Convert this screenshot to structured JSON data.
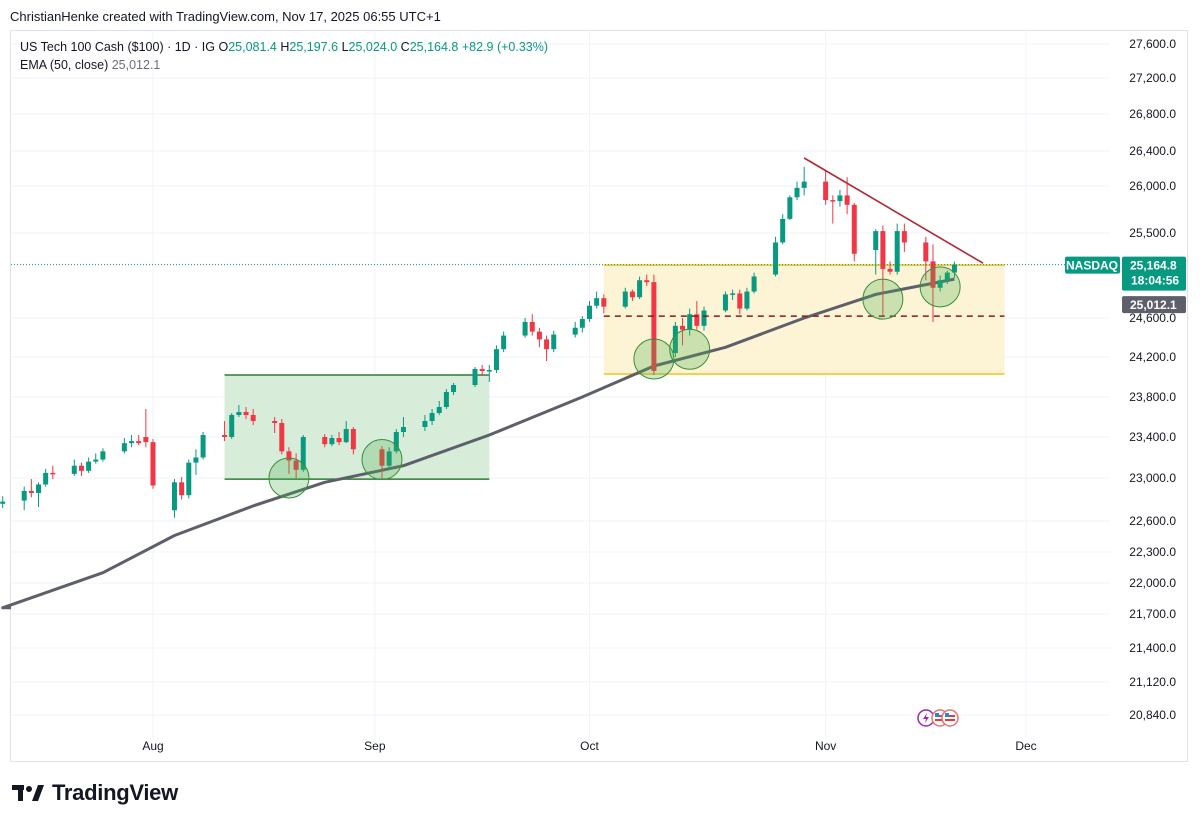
{
  "header": {
    "credit": "ChristianHenke created with TradingView.com, Nov 17, 2025 06:55 UTC+1"
  },
  "legend": {
    "symbol": "US Tech 100 Cash ($100) · 1D · IG",
    "open_label": "O",
    "open": "25,081.4",
    "high_label": "H",
    "high": "25,197.6",
    "low_label": "L",
    "low": "25,024.0",
    "close_label": "C",
    "close": "25,164.8",
    "change": "+82.9 (+0.33%)",
    "ema_label": "EMA (50, close)",
    "ema_value": "25,012.1"
  },
  "tags": {
    "symbol_tag": "NASDAQ",
    "price_tag": "25,164.8",
    "countdown": "18:04:56",
    "ema_tag": "25,012.1"
  },
  "footer": {
    "brand": "TradingView"
  },
  "colors": {
    "up": "#089981",
    "down": "#f23645",
    "ema": "#5d606b",
    "green_zone": "#d4ead6",
    "green_border": "#2e7d32",
    "yellow_zone": "#fdf2d0",
    "yellow_border": "#f0c419",
    "trendline": "#b22833",
    "support_dash": "#8b1a1a"
  },
  "chart_data": {
    "type": "candlestick",
    "y_ticks": [
      "27,600.0",
      "27,200.0",
      "26,800.0",
      "26,400.0",
      "26,000.0",
      "25,500.0",
      "24,600.0",
      "24,200.0",
      "23,800.0",
      "23,400.0",
      "23,000.0",
      "22,600.0",
      "22,300.0",
      "22,000.0",
      "21,700.0",
      "21,400.0",
      "21,120.0",
      "20,840.0"
    ],
    "x_ticks": [
      {
        "label": "Aug",
        "date": "2025-08-01"
      },
      {
        "label": "Sep",
        "date": "2025-09-01"
      },
      {
        "label": "Oct",
        "date": "2025-10-01"
      },
      {
        "label": "Nov",
        "date": "2025-11-03"
      },
      {
        "label": "Dec",
        "date": "2025-12-01"
      }
    ],
    "ohlc": [
      {
        "d": "2025-07-11",
        "o": 22760,
        "h": 22830,
        "l": 22720,
        "c": 22780
      },
      {
        "d": "2025-07-14",
        "o": 22790,
        "h": 22920,
        "l": 22700,
        "c": 22880
      },
      {
        "d": "2025-07-15",
        "o": 22880,
        "h": 22990,
        "l": 22820,
        "c": 22860
      },
      {
        "d": "2025-07-16",
        "o": 22860,
        "h": 22960,
        "l": 22730,
        "c": 22940
      },
      {
        "d": "2025-07-17",
        "o": 22940,
        "h": 23090,
        "l": 22920,
        "c": 23050
      },
      {
        "d": "2025-07-18",
        "o": 23050,
        "h": 23120,
        "l": 22990,
        "c": 23040
      },
      {
        "d": "2025-07-21",
        "o": 23040,
        "h": 23180,
        "l": 23020,
        "c": 23120
      },
      {
        "d": "2025-07-22",
        "o": 23120,
        "h": 23150,
        "l": 23020,
        "c": 23070
      },
      {
        "d": "2025-07-23",
        "o": 23070,
        "h": 23200,
        "l": 23050,
        "c": 23160
      },
      {
        "d": "2025-07-24",
        "o": 23160,
        "h": 23240,
        "l": 23140,
        "c": 23180
      },
      {
        "d": "2025-07-25",
        "o": 23180,
        "h": 23290,
        "l": 23160,
        "c": 23260
      },
      {
        "d": "2025-07-28",
        "o": 23260,
        "h": 23390,
        "l": 23240,
        "c": 23340
      },
      {
        "d": "2025-07-29",
        "o": 23340,
        "h": 23420,
        "l": 23300,
        "c": 23360
      },
      {
        "d": "2025-07-30",
        "o": 23360,
        "h": 23420,
        "l": 23320,
        "c": 23340
      },
      {
        "d": "2025-07-31",
        "o": 23400,
        "h": 23680,
        "l": 23300,
        "c": 23350
      },
      {
        "d": "2025-08-01",
        "o": 23350,
        "h": 23380,
        "l": 22900,
        "c": 22930
      },
      {
        "d": "2025-08-04",
        "o": 22700,
        "h": 22990,
        "l": 22630,
        "c": 22960
      },
      {
        "d": "2025-08-05",
        "o": 22960,
        "h": 23010,
        "l": 22800,
        "c": 22840
      },
      {
        "d": "2025-08-06",
        "o": 22840,
        "h": 23180,
        "l": 22810,
        "c": 23150
      },
      {
        "d": "2025-08-07",
        "o": 23150,
        "h": 23280,
        "l": 23030,
        "c": 23200
      },
      {
        "d": "2025-08-08",
        "o": 23200,
        "h": 23450,
        "l": 23180,
        "c": 23420
      },
      {
        "d": "2025-08-11",
        "o": 23420,
        "h": 23560,
        "l": 23360,
        "c": 23400
      },
      {
        "d": "2025-08-12",
        "o": 23400,
        "h": 23640,
        "l": 23380,
        "c": 23620
      },
      {
        "d": "2025-08-13",
        "o": 23620,
        "h": 23720,
        "l": 23600,
        "c": 23650
      },
      {
        "d": "2025-08-14",
        "o": 23650,
        "h": 23700,
        "l": 23580,
        "c": 23620
      },
      {
        "d": "2025-08-15",
        "o": 23620,
        "h": 23680,
        "l": 23520,
        "c": 23560
      },
      {
        "d": "2025-08-18",
        "o": 23560,
        "h": 23600,
        "l": 23440,
        "c": 23540
      },
      {
        "d": "2025-08-19",
        "o": 23540,
        "h": 23580,
        "l": 23230,
        "c": 23260
      },
      {
        "d": "2025-08-20",
        "o": 23260,
        "h": 23300,
        "l": 23040,
        "c": 23170
      },
      {
        "d": "2025-08-21",
        "o": 23170,
        "h": 23240,
        "l": 23000,
        "c": 23080
      },
      {
        "d": "2025-08-22",
        "o": 23080,
        "h": 23420,
        "l": 23060,
        "c": 23400
      },
      {
        "d": "2025-08-25",
        "o": 23400,
        "h": 23430,
        "l": 23300,
        "c": 23330
      },
      {
        "d": "2025-08-26",
        "o": 23330,
        "h": 23420,
        "l": 23310,
        "c": 23390
      },
      {
        "d": "2025-08-27",
        "o": 23390,
        "h": 23450,
        "l": 23320,
        "c": 23350
      },
      {
        "d": "2025-08-28",
        "o": 23350,
        "h": 23560,
        "l": 23340,
        "c": 23480
      },
      {
        "d": "2025-08-29",
        "o": 23480,
        "h": 23500,
        "l": 23230,
        "c": 23280
      },
      {
        "d": "2025-09-02",
        "o": 23280,
        "h": 23310,
        "l": 23000,
        "c": 23120
      },
      {
        "d": "2025-09-03",
        "o": 23120,
        "h": 23300,
        "l": 23080,
        "c": 23260
      },
      {
        "d": "2025-09-04",
        "o": 23260,
        "h": 23480,
        "l": 23240,
        "c": 23450
      },
      {
        "d": "2025-09-05",
        "o": 23450,
        "h": 23600,
        "l": 23400,
        "c": 23500
      },
      {
        "d": "2025-09-08",
        "o": 23500,
        "h": 23620,
        "l": 23460,
        "c": 23560
      },
      {
        "d": "2025-09-09",
        "o": 23560,
        "h": 23680,
        "l": 23520,
        "c": 23640
      },
      {
        "d": "2025-09-10",
        "o": 23640,
        "h": 23760,
        "l": 23620,
        "c": 23700
      },
      {
        "d": "2025-09-11",
        "o": 23700,
        "h": 23880,
        "l": 23680,
        "c": 23850
      },
      {
        "d": "2025-09-12",
        "o": 23850,
        "h": 23940,
        "l": 23820,
        "c": 23920
      },
      {
        "d": "2025-09-15",
        "o": 23920,
        "h": 24100,
        "l": 23900,
        "c": 24080
      },
      {
        "d": "2025-09-16",
        "o": 24080,
        "h": 24120,
        "l": 24010,
        "c": 24060
      },
      {
        "d": "2025-09-17",
        "o": 24060,
        "h": 24120,
        "l": 23950,
        "c": 24070
      },
      {
        "d": "2025-09-18",
        "o": 24070,
        "h": 24320,
        "l": 24040,
        "c": 24280
      },
      {
        "d": "2025-09-19",
        "o": 24280,
        "h": 24460,
        "l": 24250,
        "c": 24420
      },
      {
        "d": "2025-09-22",
        "o": 24420,
        "h": 24600,
        "l": 24400,
        "c": 24560
      },
      {
        "d": "2025-09-23",
        "o": 24560,
        "h": 24640,
        "l": 24420,
        "c": 24460
      },
      {
        "d": "2025-09-24",
        "o": 24460,
        "h": 24500,
        "l": 24300,
        "c": 24380
      },
      {
        "d": "2025-09-25",
        "o": 24380,
        "h": 24420,
        "l": 24160,
        "c": 24280
      },
      {
        "d": "2025-09-26",
        "o": 24280,
        "h": 24470,
        "l": 24250,
        "c": 24430
      },
      {
        "d": "2025-09-29",
        "o": 24430,
        "h": 24560,
        "l": 24400,
        "c": 24500
      },
      {
        "d": "2025-09-30",
        "o": 24500,
        "h": 24620,
        "l": 24450,
        "c": 24590
      },
      {
        "d": "2025-10-01",
        "o": 24590,
        "h": 24780,
        "l": 24560,
        "c": 24730
      },
      {
        "d": "2025-10-02",
        "o": 24730,
        "h": 24880,
        "l": 24700,
        "c": 24810
      },
      {
        "d": "2025-10-03",
        "o": 24810,
        "h": 24850,
        "l": 24650,
        "c": 24720
      },
      {
        "d": "2025-10-06",
        "o": 24720,
        "h": 24920,
        "l": 24700,
        "c": 24880
      },
      {
        "d": "2025-10-07",
        "o": 24880,
        "h": 24900,
        "l": 24780,
        "c": 24820
      },
      {
        "d": "2025-10-08",
        "o": 24820,
        "h": 25040,
        "l": 24800,
        "c": 25000
      },
      {
        "d": "2025-10-09",
        "o": 25000,
        "h": 25060,
        "l": 24940,
        "c": 24980
      },
      {
        "d": "2025-10-10",
        "o": 24980,
        "h": 25060,
        "l": 24020,
        "c": 24060
      },
      {
        "d": "2025-10-13",
        "o": 24240,
        "h": 24560,
        "l": 24200,
        "c": 24520
      },
      {
        "d": "2025-10-14",
        "o": 24520,
        "h": 24600,
        "l": 24320,
        "c": 24480
      },
      {
        "d": "2025-10-15",
        "o": 24480,
        "h": 24700,
        "l": 24420,
        "c": 24640
      },
      {
        "d": "2025-10-16",
        "o": 24640,
        "h": 24780,
        "l": 24480,
        "c": 24520
      },
      {
        "d": "2025-10-17",
        "o": 24520,
        "h": 24720,
        "l": 24470,
        "c": 24680
      },
      {
        "d": "2025-10-20",
        "o": 24680,
        "h": 24880,
        "l": 24660,
        "c": 24850
      },
      {
        "d": "2025-10-21",
        "o": 24850,
        "h": 24900,
        "l": 24790,
        "c": 24860
      },
      {
        "d": "2025-10-22",
        "o": 24860,
        "h": 24900,
        "l": 24640,
        "c": 24700
      },
      {
        "d": "2025-10-23",
        "o": 24700,
        "h": 24920,
        "l": 24680,
        "c": 24880
      },
      {
        "d": "2025-10-24",
        "o": 24880,
        "h": 25080,
        "l": 24860,
        "c": 25040
      },
      {
        "d": "2025-10-27",
        "o": 25060,
        "h": 25460,
        "l": 25040,
        "c": 25400
      },
      {
        "d": "2025-10-28",
        "o": 25400,
        "h": 25700,
        "l": 25380,
        "c": 25650
      },
      {
        "d": "2025-10-29",
        "o": 25650,
        "h": 25900,
        "l": 25640,
        "c": 25880
      },
      {
        "d": "2025-10-30",
        "o": 25880,
        "h": 26050,
        "l": 25850,
        "c": 25980
      },
      {
        "d": "2025-10-31",
        "o": 25980,
        "h": 26220,
        "l": 25900,
        "c": 26050
      },
      {
        "d": "2025-11-03",
        "o": 26050,
        "h": 26180,
        "l": 25800,
        "c": 25850
      },
      {
        "d": "2025-11-04",
        "o": 25850,
        "h": 25900,
        "l": 25600,
        "c": 25840
      },
      {
        "d": "2025-11-05",
        "o": 25840,
        "h": 25960,
        "l": 25780,
        "c": 25900
      },
      {
        "d": "2025-11-06",
        "o": 25900,
        "h": 26100,
        "l": 25700,
        "c": 25800
      },
      {
        "d": "2025-11-07",
        "o": 25800,
        "h": 25820,
        "l": 25200,
        "c": 25280
      },
      {
        "d": "2025-11-10",
        "o": 25320,
        "h": 25540,
        "l": 25060,
        "c": 25520
      },
      {
        "d": "2025-11-11",
        "o": 25520,
        "h": 25580,
        "l": 24620,
        "c": 25120
      },
      {
        "d": "2025-11-12",
        "o": 25120,
        "h": 25200,
        "l": 25060,
        "c": 25090
      },
      {
        "d": "2025-11-13",
        "o": 25090,
        "h": 25600,
        "l": 25060,
        "c": 25520
      },
      {
        "d": "2025-11-14",
        "o": 25520,
        "h": 25600,
        "l": 25300,
        "c": 25400
      },
      {
        "d": "2025-11-17",
        "o": 25400,
        "h": 25460,
        "l": 25000,
        "c": 25200
      },
      {
        "d": "2025-11-18",
        "o": 25200,
        "h": 25380,
        "l": 24560,
        "c": 24920
      },
      {
        "d": "2025-11-19",
        "o": 24920,
        "h": 25050,
        "l": 24880,
        "c": 25000
      },
      {
        "d": "2025-11-20",
        "o": 25000,
        "h": 25100,
        "l": 24960,
        "c": 25081
      },
      {
        "d": "2025-11-21",
        "o": 25081.4,
        "h": 25197.6,
        "l": 25024.0,
        "c": 25164.8
      }
    ],
    "ema50": [
      {
        "d": "2025-07-11",
        "v": 21760
      },
      {
        "d": "2025-07-25",
        "v": 22100
      },
      {
        "d": "2025-08-04",
        "v": 22460
      },
      {
        "d": "2025-08-15",
        "v": 22740
      },
      {
        "d": "2025-08-25",
        "v": 22960
      },
      {
        "d": "2025-09-05",
        "v": 23120
      },
      {
        "d": "2025-09-17",
        "v": 23420
      },
      {
        "d": "2025-09-30",
        "v": 23800
      },
      {
        "d": "2025-10-10",
        "v": 24110
      },
      {
        "d": "2025-10-20",
        "v": 24300
      },
      {
        "d": "2025-10-31",
        "v": 24600
      },
      {
        "d": "2025-11-10",
        "v": 24850
      },
      {
        "d": "2025-11-21",
        "v": 25012
      }
    ],
    "zones": [
      {
        "kind": "range",
        "color": "green",
        "from": "2025-08-11",
        "to": "2025-09-17",
        "top": 24020,
        "bottom": 22990
      },
      {
        "kind": "range",
        "color": "yellow",
        "from": "2025-10-03",
        "to": "2025-11-28",
        "top": 25160,
        "bottom": 24030
      }
    ],
    "support_level": 24620,
    "trendline": [
      {
        "d": "2025-10-31",
        "v": 26320
      },
      {
        "d": "2025-11-25",
        "v": 25180
      }
    ],
    "circles": [
      {
        "d": "2025-08-20",
        "v": 23000
      },
      {
        "d": "2025-09-02",
        "v": 23180
      },
      {
        "d": "2025-10-10",
        "v": 24180
      },
      {
        "d": "2025-10-15",
        "v": 24280
      },
      {
        "d": "2025-11-11",
        "v": 24800
      },
      {
        "d": "2025-11-19",
        "v": 24930
      }
    ]
  }
}
